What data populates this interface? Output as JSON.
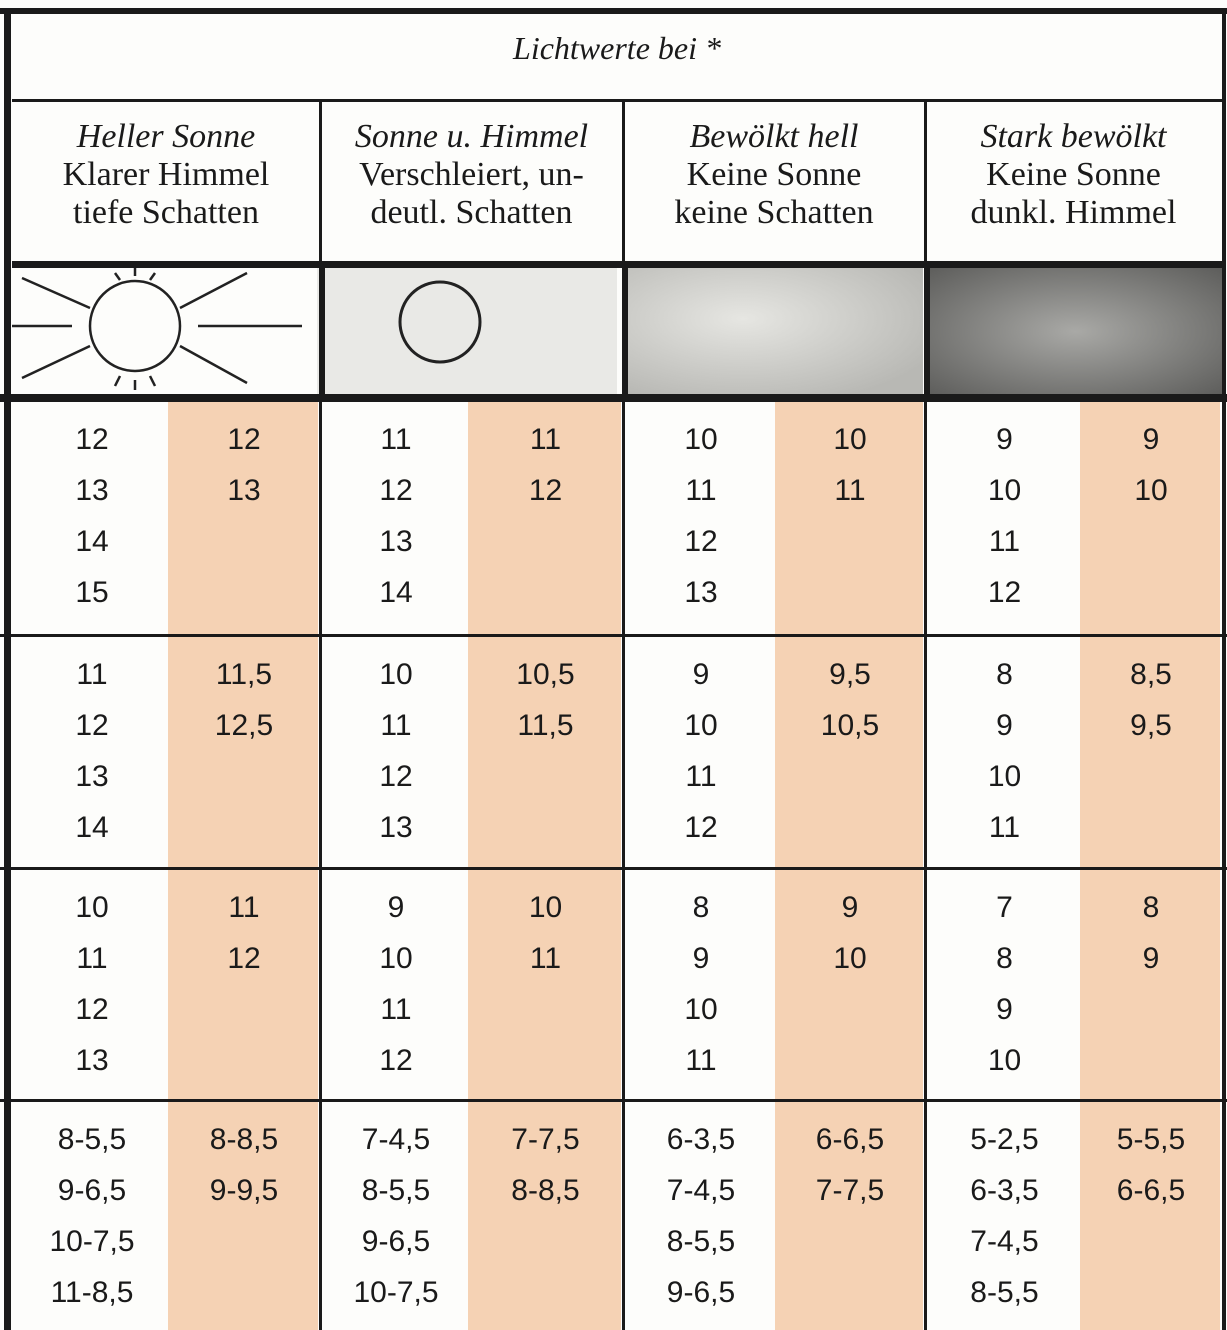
{
  "title": "Lichtwerte bei *",
  "headers": [
    {
      "title": "Heller Sonne",
      "lines": [
        "Klarer Himmel",
        "tiefe Schatten"
      ]
    },
    {
      "title": "Sonne u. Himmel",
      "lines": [
        "Verschleiert, un-",
        "deutl. Schatten"
      ]
    },
    {
      "title": "Bewölkt hell",
      "lines": [
        "Keine Sonne",
        "keine Schatten"
      ]
    },
    {
      "title": "Stark bewölkt",
      "lines": [
        "Keine Sonne",
        "dunkl. Himmel"
      ]
    }
  ],
  "groups": [
    [
      [
        "12",
        "13",
        "14",
        "15"
      ],
      [
        "12",
        "13"
      ],
      [
        "11",
        "12",
        "13",
        "14"
      ],
      [
        "11",
        "12"
      ],
      [
        "10",
        "11",
        "12",
        "13"
      ],
      [
        "10",
        "11"
      ],
      [
        "9",
        "10",
        "11",
        "12"
      ],
      [
        "9",
        "10"
      ]
    ],
    [
      [
        "11",
        "12",
        "13",
        "14"
      ],
      [
        "11,5",
        "12,5"
      ],
      [
        "10",
        "11",
        "12",
        "13"
      ],
      [
        "10,5",
        "11,5"
      ],
      [
        "9",
        "10",
        "11",
        "12"
      ],
      [
        "9,5",
        "10,5"
      ],
      [
        "8",
        "9",
        "10",
        "11"
      ],
      [
        "8,5",
        "9,5"
      ]
    ],
    [
      [
        "10",
        "11",
        "12",
        "13"
      ],
      [
        "11",
        "12"
      ],
      [
        "9",
        "10",
        "11",
        "12"
      ],
      [
        "10",
        "11"
      ],
      [
        "8",
        "9",
        "10",
        "11"
      ],
      [
        "9",
        "10"
      ],
      [
        "7",
        "8",
        "9",
        "10"
      ],
      [
        "8",
        "9"
      ]
    ],
    [
      [
        "8-5,5",
        "9-6,5",
        "10-7,5",
        "11-8,5"
      ],
      [
        "8-8,5",
        "9-9,5"
      ],
      [
        "7-4,5",
        "8-5,5",
        "9-6,5",
        "10-7,5"
      ],
      [
        "7-7,5",
        "8-8,5"
      ],
      [
        "6-3,5",
        "7-4,5",
        "8-5,5",
        "9-6,5"
      ],
      [
        "6-6,5",
        "7-7,5"
      ],
      [
        "5-2,5",
        "6-3,5",
        "7-4,5",
        "8-5,5"
      ],
      [
        "5-5,5",
        "6-6,5"
      ]
    ]
  ]
}
